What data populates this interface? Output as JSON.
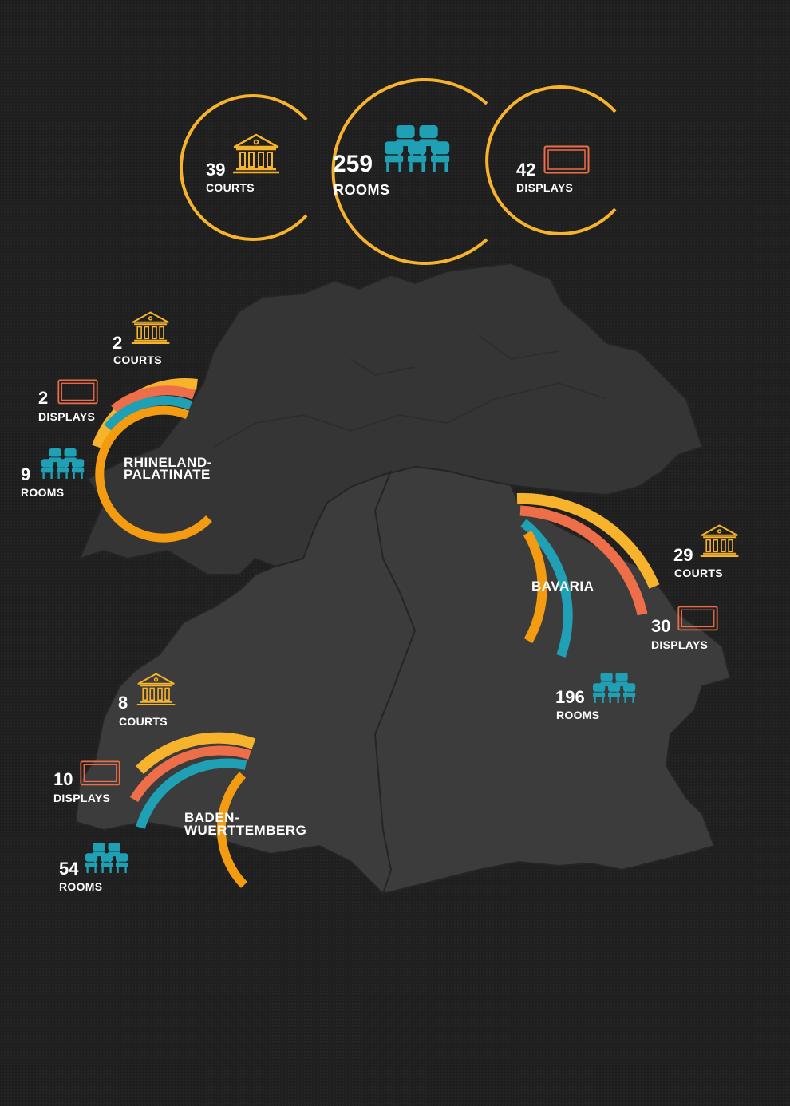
{
  "colors": {
    "courts": "#f7b32b",
    "displays": "#ee6e4a",
    "rooms": "#1fa0b4",
    "ring": "#f39c12",
    "map_fill": "#353535",
    "map_border": "#252525"
  },
  "icons": {
    "courts": "courthouse-icon",
    "displays": "display-icon",
    "rooms": "seats-icon"
  },
  "totals": {
    "courts": {
      "value": "39",
      "label": "COURTS"
    },
    "rooms": {
      "value": "259",
      "label": "ROOMS"
    },
    "displays": {
      "value": "42",
      "label": "DISPLAYS"
    }
  },
  "regions": {
    "rhineland": {
      "name_line1": "RHINELAND-",
      "name_line2": "PALATINATE",
      "courts": {
        "value": "2",
        "label": "COURTS"
      },
      "displays": {
        "value": "2",
        "label": "DISPLAYS"
      },
      "rooms": {
        "value": "9",
        "label": "ROOMS"
      }
    },
    "bavaria": {
      "name_line1": "BAVARIA",
      "courts": {
        "value": "29",
        "label": "COURTS"
      },
      "displays": {
        "value": "30",
        "label": "DISPLAYS"
      },
      "rooms": {
        "value": "196",
        "label": "ROOMS"
      }
    },
    "baden": {
      "name_line1": "BADEN-",
      "name_line2": "WUERTTEMBERG",
      "courts": {
        "value": "8",
        "label": "COURTS"
      },
      "displays": {
        "value": "10",
        "label": "DISPLAYS"
      },
      "rooms": {
        "value": "54",
        "label": "ROOMS"
      }
    }
  }
}
